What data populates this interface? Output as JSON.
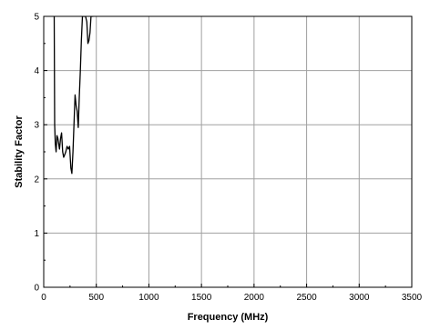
{
  "chart_data": {
    "type": "line",
    "title": "",
    "xlabel": "Frequency (MHz)",
    "ylabel": "Stability Factor",
    "xlim": [
      0,
      3500
    ],
    "ylim": [
      0,
      5
    ],
    "x_ticks": [
      0,
      500,
      1000,
      1500,
      2000,
      2500,
      3000,
      3500
    ],
    "y_ticks": [
      0,
      1,
      2,
      3,
      4,
      5
    ],
    "grid": true,
    "legend": "none",
    "line_color": "#000000",
    "grid_color": "#a0a0a0",
    "series": [
      {
        "x": [
          100,
          104,
          110,
          118,
          126,
          134,
          142,
          150,
          160,
          170,
          180,
          190,
          200,
          210,
          222,
          234,
          246,
          258,
          268,
          278,
          288,
          298,
          308,
          318,
          328,
          338,
          348,
          358,
          368,
          378,
          388,
          398,
          410,
          420,
          430,
          440,
          450,
          460,
          470
        ],
        "y": [
          5.0,
          3.0,
          2.65,
          2.5,
          2.8,
          2.75,
          2.65,
          2.55,
          2.75,
          2.85,
          2.5,
          2.4,
          2.45,
          2.5,
          2.6,
          2.55,
          2.6,
          2.2,
          2.1,
          2.5,
          3.0,
          3.55,
          3.35,
          3.25,
          2.95,
          3.5,
          4.0,
          4.55,
          5.0,
          5.0,
          5.0,
          5.0,
          4.9,
          4.5,
          4.55,
          4.7,
          5.0,
          5.0,
          5.0
        ]
      }
    ]
  }
}
